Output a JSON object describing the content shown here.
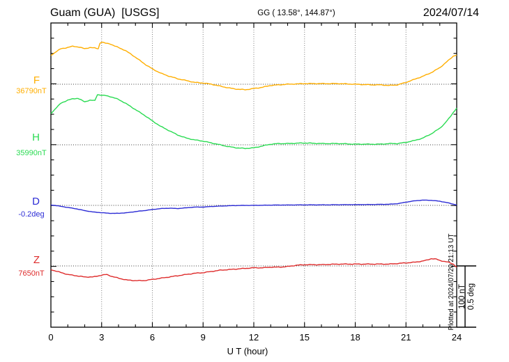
{
  "header": {
    "station_title": "Guam (GUA)  [USGS]",
    "coordinates": "GG ( 13.58°, 144.87°)",
    "date": "2024/07/14"
  },
  "axes": {
    "x_label": "U T (hour)",
    "x_ticks": [
      0,
      3,
      6,
      9,
      12,
      15,
      18,
      21,
      24
    ],
    "x_range": [
      0,
      24
    ]
  },
  "scale_bar": {
    "label_nt": "100 nT",
    "label_deg": "0.5 deg"
  },
  "footer": {
    "plotted_note": "Plotted at 2024/07/20 21:13 UT"
  },
  "chart_data": {
    "type": "line",
    "title": "Guam (GUA) [USGS] magnetogram 2024/07/14",
    "xlabel": "U T (hour)",
    "xlim": [
      0,
      24
    ],
    "x_major_tick_step_hours": 3,
    "x_minor_tick_step_hours": 1,
    "grid": "dotted vertical lines every 3 h; dotted horizontal baseline for each channel",
    "legend_position": "left margin channel labels",
    "scale_per_division": {
      "field_nT": 100,
      "declination_deg": 0.5
    },
    "series": [
      {
        "name": "F",
        "unit": "nT",
        "color": "#FFAE00",
        "baseline": 36790,
        "baseline_label": "36790nT",
        "points": [
          [
            0,
            36837
          ],
          [
            0.3,
            36843
          ],
          [
            0.6,
            36848
          ],
          [
            1,
            36850
          ],
          [
            1.3,
            36852
          ],
          [
            1.6,
            36851
          ],
          [
            2,
            36848
          ],
          [
            2.3,
            36850
          ],
          [
            2.6,
            36849
          ],
          [
            2.8,
            36848
          ],
          [
            2.9,
            36857
          ],
          [
            3,
            36859
          ],
          [
            3.2,
            36857
          ],
          [
            3.5,
            36856
          ],
          [
            3.8,
            36852
          ],
          [
            4,
            36850
          ],
          [
            4.4,
            36845
          ],
          [
            4.8,
            36838
          ],
          [
            5.2,
            36830
          ],
          [
            5.6,
            36822
          ],
          [
            6,
            36815
          ],
          [
            6.5,
            36808
          ],
          [
            7,
            36803
          ],
          [
            7.5,
            36799
          ],
          [
            8,
            36796
          ],
          [
            8.5,
            36793
          ],
          [
            9,
            36792
          ],
          [
            9.5,
            36790
          ],
          [
            10,
            36787
          ],
          [
            10.5,
            36784
          ],
          [
            11,
            36782
          ],
          [
            11.5,
            36781
          ],
          [
            12,
            36783
          ],
          [
            12.5,
            36785
          ],
          [
            13,
            36788
          ],
          [
            13.5,
            36789
          ],
          [
            14,
            36790
          ],
          [
            15,
            36791
          ],
          [
            16,
            36791
          ],
          [
            17,
            36791
          ],
          [
            18,
            36790
          ],
          [
            19,
            36789
          ],
          [
            19.5,
            36789
          ],
          [
            20,
            36788
          ],
          [
            20.5,
            36789
          ],
          [
            21,
            36793
          ],
          [
            21.5,
            36798
          ],
          [
            22,
            36803
          ],
          [
            22.5,
            36809
          ],
          [
            23,
            36817
          ],
          [
            23.3,
            36824
          ],
          [
            23.6,
            36831
          ],
          [
            23.8,
            36836
          ],
          [
            24,
            36838
          ]
        ]
      },
      {
        "name": "H",
        "unit": "nT",
        "color": "#2ADB52",
        "baseline": 35990,
        "baseline_label": "35990nT",
        "points": [
          [
            0,
            36041
          ],
          [
            0.3,
            36050
          ],
          [
            0.6,
            36058
          ],
          [
            1,
            36063
          ],
          [
            1.3,
            36065
          ],
          [
            1.6,
            36066
          ],
          [
            2,
            36060
          ],
          [
            2.3,
            36063
          ],
          [
            2.6,
            36062
          ],
          [
            2.75,
            36072
          ],
          [
            3,
            36071
          ],
          [
            3.3,
            36070
          ],
          [
            3.6,
            36068
          ],
          [
            4,
            36064
          ],
          [
            4.4,
            36058
          ],
          [
            4.8,
            36051
          ],
          [
            5.2,
            36044
          ],
          [
            5.6,
            36037
          ],
          [
            6,
            36029
          ],
          [
            6.5,
            36020
          ],
          [
            7,
            36013
          ],
          [
            7.5,
            36006
          ],
          [
            8,
            36001
          ],
          [
            8.5,
            35998
          ],
          [
            9,
            35996
          ],
          [
            9.5,
            35993
          ],
          [
            10,
            35990
          ],
          [
            10.5,
            35987
          ],
          [
            11,
            35985
          ],
          [
            11.5,
            35984
          ],
          [
            12,
            35985
          ],
          [
            12.5,
            35988
          ],
          [
            13,
            35991
          ],
          [
            13.5,
            35992
          ],
          [
            14,
            35992
          ],
          [
            15,
            35993
          ],
          [
            16,
            35992
          ],
          [
            17,
            35992
          ],
          [
            18,
            35991
          ],
          [
            19,
            35991
          ],
          [
            19.5,
            35991
          ],
          [
            20,
            35992
          ],
          [
            20.5,
            35992
          ],
          [
            21,
            35994
          ],
          [
            21.5,
            35997
          ],
          [
            22,
            36001
          ],
          [
            22.5,
            36008
          ],
          [
            23,
            36017
          ],
          [
            23.3,
            36025
          ],
          [
            23.6,
            36035
          ],
          [
            23.8,
            36043
          ],
          [
            24,
            36050
          ]
        ]
      },
      {
        "name": "D",
        "unit": "deg",
        "color": "#2B2BD5",
        "baseline": -0.2,
        "baseline_label": "-0.2deg",
        "points": [
          [
            0,
            -0.196
          ],
          [
            0.5,
            -0.206
          ],
          [
            1,
            -0.217
          ],
          [
            1.5,
            -0.228
          ],
          [
            2,
            -0.243
          ],
          [
            2.5,
            -0.254
          ],
          [
            3,
            -0.26
          ],
          [
            3.5,
            -0.265
          ],
          [
            4,
            -0.265
          ],
          [
            4.5,
            -0.26
          ],
          [
            5,
            -0.251
          ],
          [
            5.5,
            -0.243
          ],
          [
            6,
            -0.234
          ],
          [
            6.5,
            -0.226
          ],
          [
            7,
            -0.223
          ],
          [
            7.5,
            -0.226
          ],
          [
            8,
            -0.22
          ],
          [
            8.5,
            -0.214
          ],
          [
            9,
            -0.214
          ],
          [
            9.5,
            -0.209
          ],
          [
            10,
            -0.206
          ],
          [
            10.5,
            -0.203
          ],
          [
            11,
            -0.201
          ],
          [
            12,
            -0.2
          ],
          [
            13,
            -0.198
          ],
          [
            14,
            -0.197
          ],
          [
            15,
            -0.196
          ],
          [
            16,
            -0.196
          ],
          [
            17,
            -0.195
          ],
          [
            18,
            -0.194
          ],
          [
            19,
            -0.193
          ],
          [
            20,
            -0.191
          ],
          [
            20.5,
            -0.186
          ],
          [
            21,
            -0.174
          ],
          [
            21.5,
            -0.163
          ],
          [
            22,
            -0.157
          ],
          [
            22.5,
            -0.159
          ],
          [
            23,
            -0.166
          ],
          [
            23.5,
            -0.18
          ],
          [
            24,
            -0.197
          ]
        ]
      },
      {
        "name": "Z",
        "unit": "nT",
        "color": "#DE2B2B",
        "baseline": 7650,
        "baseline_label": "7650nT",
        "points": [
          [
            0,
            7644
          ],
          [
            0.5,
            7640
          ],
          [
            1,
            7636
          ],
          [
            1.5,
            7634
          ],
          [
            2,
            7632
          ],
          [
            2.5,
            7632
          ],
          [
            3,
            7635
          ],
          [
            3.3,
            7636
          ],
          [
            3.6,
            7633
          ],
          [
            4,
            7630
          ],
          [
            4.5,
            7627
          ],
          [
            5,
            7626
          ],
          [
            5.5,
            7626
          ],
          [
            6,
            7628
          ],
          [
            6.5,
            7630
          ],
          [
            7,
            7632
          ],
          [
            7.5,
            7634
          ],
          [
            8,
            7636
          ],
          [
            8.5,
            7638
          ],
          [
            9,
            7639
          ],
          [
            9.5,
            7641
          ],
          [
            10,
            7643
          ],
          [
            10.5,
            7644
          ],
          [
            11,
            7645
          ],
          [
            11.5,
            7646
          ],
          [
            12,
            7647
          ],
          [
            12.5,
            7647
          ],
          [
            13,
            7648
          ],
          [
            13.5,
            7648
          ],
          [
            14,
            7649
          ],
          [
            14.5,
            7651
          ],
          [
            15,
            7652
          ],
          [
            16,
            7652
          ],
          [
            17,
            7653
          ],
          [
            18,
            7653
          ],
          [
            19,
            7653
          ],
          [
            20,
            7653
          ],
          [
            20.5,
            7654
          ],
          [
            21,
            7655
          ],
          [
            21.5,
            7656
          ],
          [
            22,
            7658
          ],
          [
            22.3,
            7660
          ],
          [
            22.5,
            7662
          ],
          [
            22.8,
            7661
          ],
          [
            23,
            7659
          ],
          [
            23.5,
            7656
          ],
          [
            23.8,
            7653
          ],
          [
            24,
            7648
          ]
        ]
      }
    ]
  }
}
